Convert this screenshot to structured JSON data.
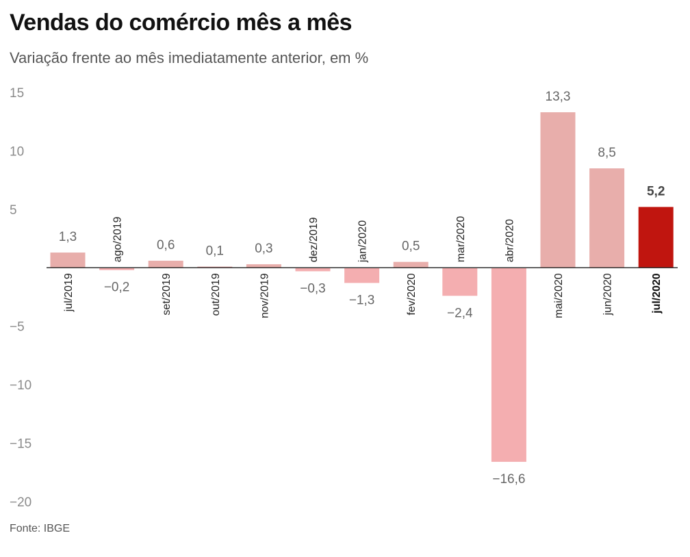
{
  "title": "Vendas do comércio mês a mês",
  "subtitle": "Variação frente ao mês imediatamente anterior, em %",
  "source": "Fonte: IBGE",
  "colors": {
    "positive": "#e8aeab",
    "negative": "#f4aeb0",
    "highlight": "#c0150f",
    "axis": "#333333"
  },
  "chart_data": {
    "type": "bar",
    "title": "Vendas do comércio mês a mês",
    "subtitle": "Variação frente ao mês imediatamente anterior, em %",
    "xlabel": "",
    "ylabel": "",
    "ylim": [
      -20,
      15
    ],
    "yticks": [
      15,
      10,
      5,
      -5,
      -10,
      -15,
      -20
    ],
    "ytick_labels": [
      "15",
      "10",
      "5",
      "−5",
      "−10",
      "−15",
      "−20"
    ],
    "grid": false,
    "categories": [
      "jul/2019",
      "ago/2019",
      "set/2019",
      "out/2019",
      "nov/2019",
      "dez/2019",
      "jan/2020",
      "fev/2020",
      "mar/2020",
      "abr/2020",
      "mai/2020",
      "jun/2020",
      "jul/2020"
    ],
    "values": [
      1.3,
      -0.2,
      0.6,
      0.1,
      0.3,
      -0.3,
      -1.3,
      0.5,
      -2.4,
      -16.6,
      13.3,
      8.5,
      5.2
    ],
    "value_labels": [
      "1,3",
      "−0,2",
      "0,6",
      "0,1",
      "0,3",
      "−0,3",
      "−1,3",
      "0,5",
      "−2,4",
      "−16,6",
      "13,3",
      "8,5",
      "5,2"
    ],
    "highlight_category": "jul/2020"
  }
}
